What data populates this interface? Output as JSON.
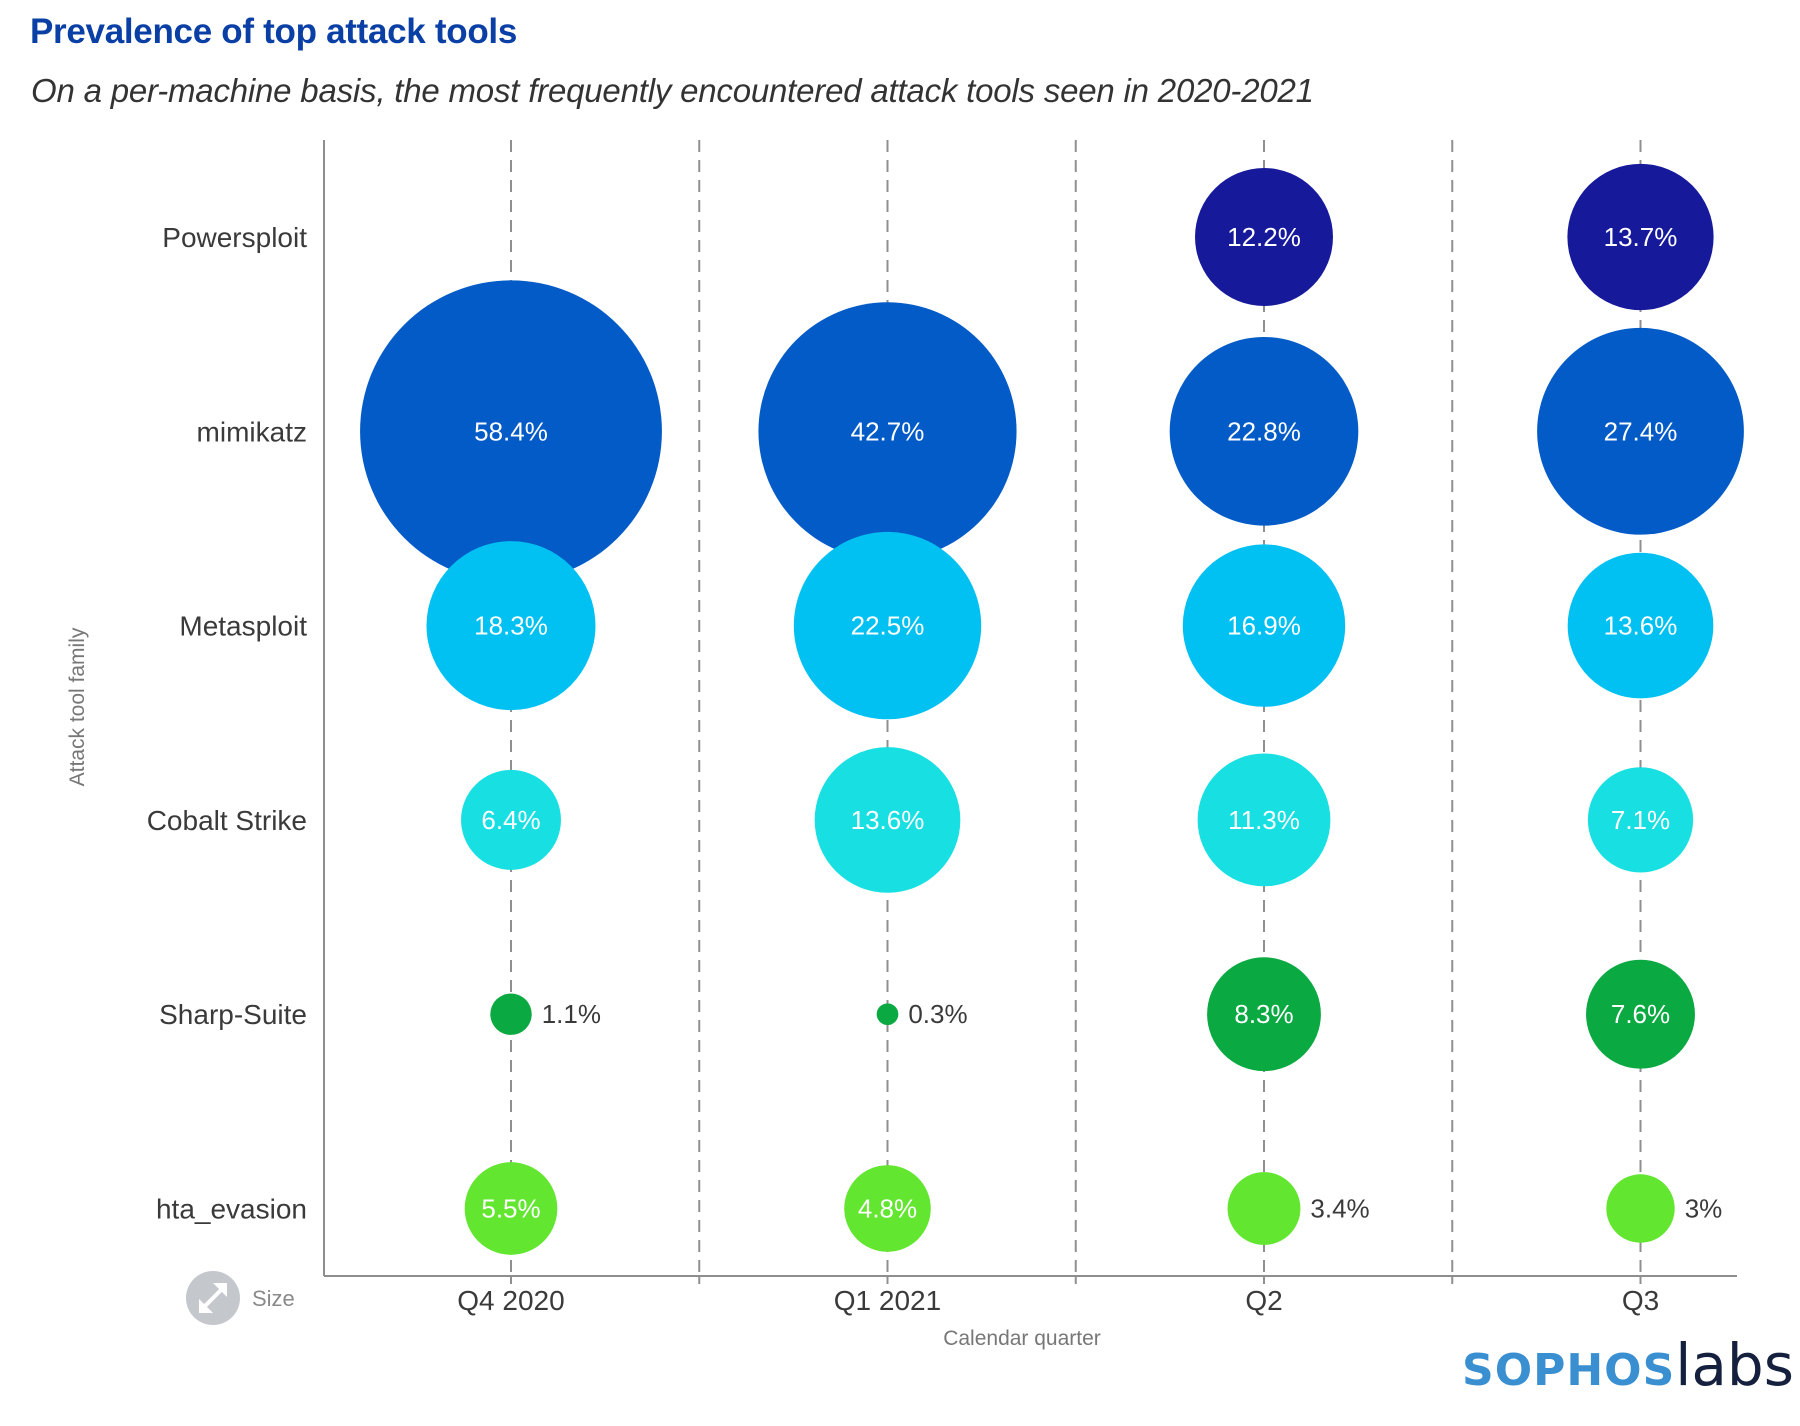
{
  "header": {
    "title": "Prevalence of top attack tools",
    "subtitle": "On a per-machine basis, the most frequently encountered attack tools seen in 2020-2021"
  },
  "logo": {
    "brand": "SOPHOS",
    "suffix": "labs",
    "brand_color": "#3a8fd1",
    "suffix_color": "#14203d"
  },
  "legend": {
    "icon": "resize-arrows-icon",
    "label": "Size"
  },
  "chart_data": {
    "type": "scatter",
    "subtype": "bubble",
    "title": "Prevalence of top attack tools",
    "subtitle": "On a per-machine basis, the most frequently encountered attack tools seen in 2020-2021",
    "xlabel": "Calendar quarter",
    "ylabel": "Attack tool family",
    "x_categories": [
      "Q4 2020",
      "Q1 2021",
      "Q2",
      "Q3"
    ],
    "y_categories": [
      "Powersploit",
      "mimikatz",
      "Metasploit",
      "Cobalt Strike",
      "Sharp-Suite",
      "hta_evasion"
    ],
    "size_encoding": "area proportional to value (%)",
    "value_unit": "%",
    "grid": "dashed vertical lines at each quarter and between quarters",
    "legend": "bottom-left",
    "series": [
      {
        "name": "Powersploit",
        "color": "#17199b",
        "values": [
          null,
          null,
          12.2,
          13.7
        ],
        "labels": [
          "",
          "",
          "12.2%",
          "13.7%"
        ]
      },
      {
        "name": "mimikatz",
        "color": "#035bc8",
        "values": [
          58.4,
          42.7,
          22.8,
          27.4
        ],
        "labels": [
          "58.4%",
          "42.7%",
          "22.8%",
          "27.4%"
        ]
      },
      {
        "name": "Metasploit",
        "color": "#00c1f1",
        "values": [
          18.3,
          22.5,
          16.9,
          13.6
        ],
        "labels": [
          "18.3%",
          "22.5%",
          "16.9%",
          "13.6%"
        ]
      },
      {
        "name": "Cobalt Strike",
        "color": "#18e0e2",
        "values": [
          6.4,
          13.6,
          11.3,
          7.1
        ],
        "labels": [
          "6.4%",
          "13.6%",
          "11.3%",
          "7.1%"
        ]
      },
      {
        "name": "Sharp-Suite",
        "color": "#0ba942",
        "values": [
          1.1,
          0.3,
          8.3,
          7.6
        ],
        "labels": [
          "1.1%",
          "0.3%",
          "8.3%",
          "7.6%"
        ]
      },
      {
        "name": "hta_evasion",
        "color": "#63e630",
        "values": [
          5.5,
          4.8,
          3.4,
          3.0
        ],
        "labels": [
          "5.5%",
          "4.8%",
          "3.4%",
          "3%"
        ]
      }
    ]
  }
}
